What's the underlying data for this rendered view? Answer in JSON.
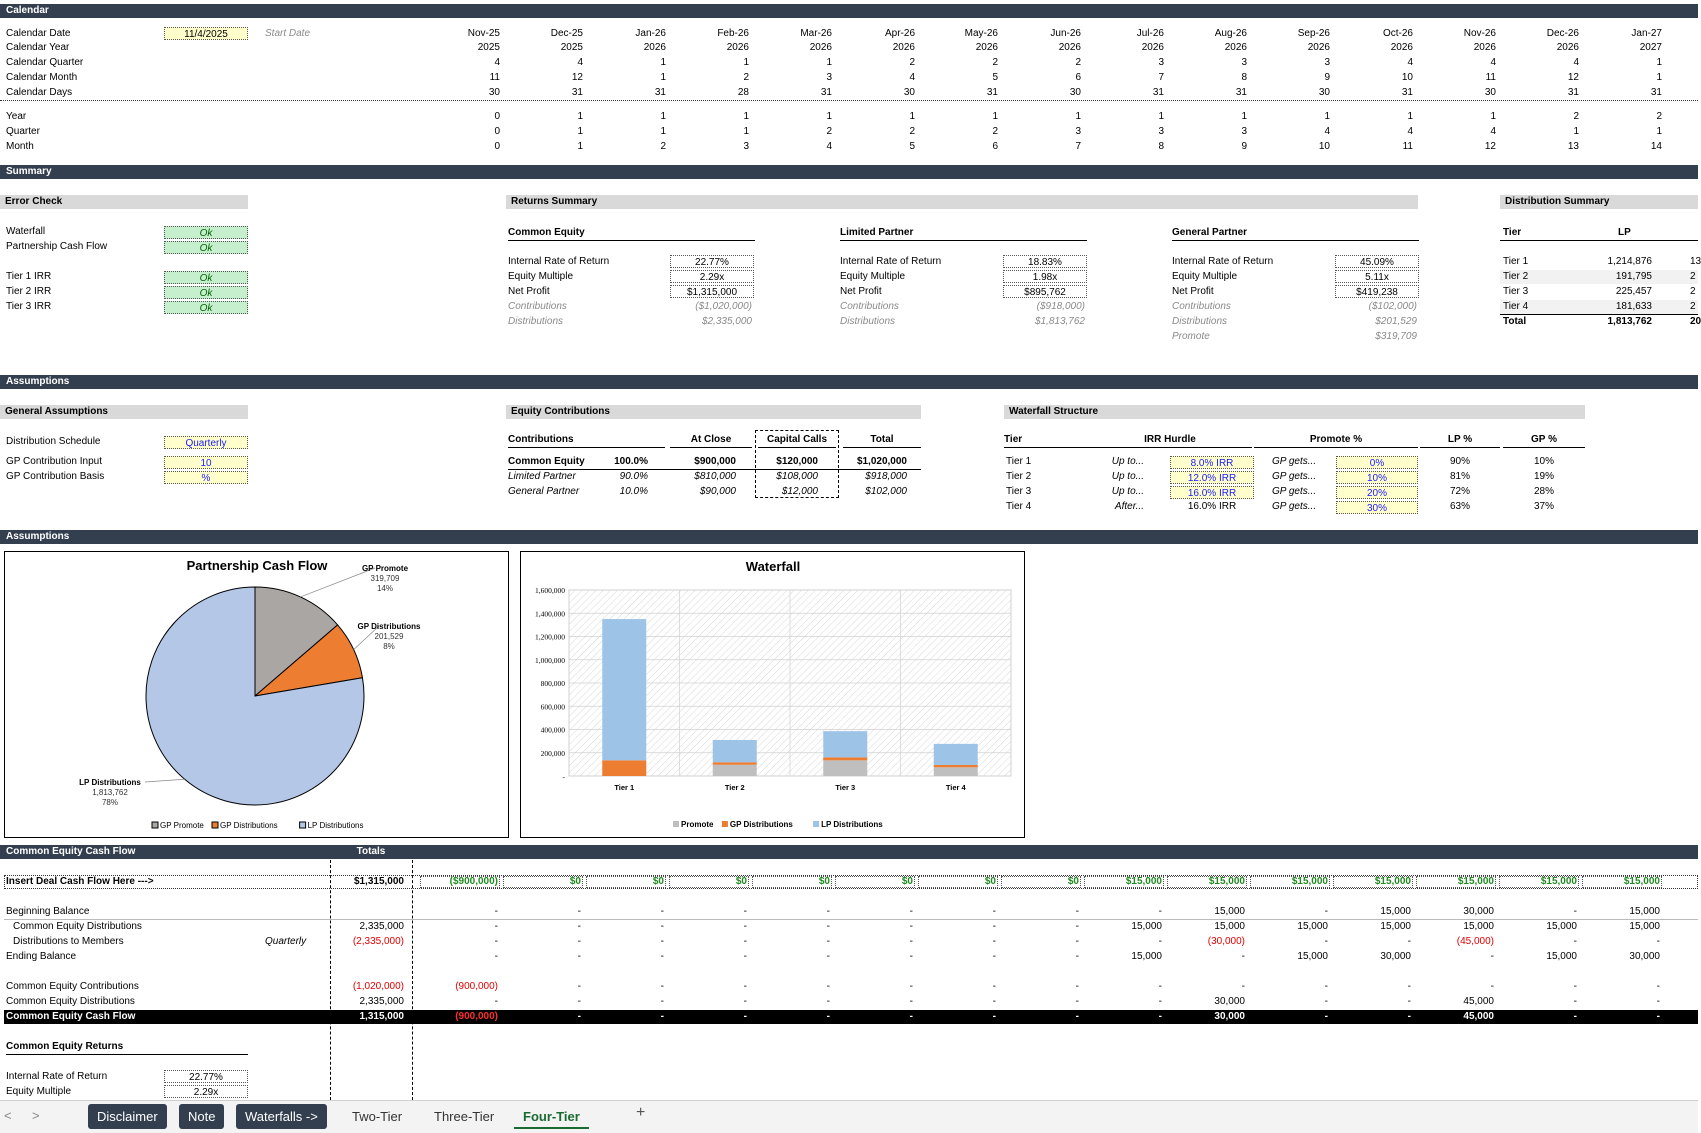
{
  "calendar": {
    "section": "Calendar",
    "labels": [
      "Calendar Date",
      "Calendar Year",
      "Calendar Quarter",
      "Calendar Month",
      "Calendar Days"
    ],
    "date_value": "11/4/2025",
    "start_label": "Start Date",
    "months": [
      "Nov-25",
      "Dec-25",
      "Jan-26",
      "Feb-26",
      "Mar-26",
      "Apr-26",
      "May-26",
      "Jun-26",
      "Jul-26",
      "Aug-26",
      "Sep-26",
      "Oct-26",
      "Nov-26",
      "Dec-26",
      "Jan-27"
    ],
    "years": [
      "2025",
      "2025",
      "2026",
      "2026",
      "2026",
      "2026",
      "2026",
      "2026",
      "2026",
      "2026",
      "2026",
      "2026",
      "2026",
      "2026",
      "2027"
    ],
    "quarters": [
      "4",
      "4",
      "1",
      "1",
      "1",
      "2",
      "2",
      "2",
      "3",
      "3",
      "3",
      "4",
      "4",
      "4",
      "1"
    ],
    "cal_months": [
      "11",
      "12",
      "1",
      "2",
      "3",
      "4",
      "5",
      "6",
      "7",
      "8",
      "9",
      "10",
      "11",
      "12",
      "1"
    ],
    "days": [
      "30",
      "31",
      "31",
      "28",
      "31",
      "30",
      "31",
      "30",
      "31",
      "31",
      "30",
      "31",
      "30",
      "31",
      "31"
    ],
    "period_labels": [
      "Year",
      "Quarter",
      "Month"
    ],
    "year_idx": [
      "0",
      "1",
      "1",
      "1",
      "1",
      "1",
      "1",
      "1",
      "1",
      "1",
      "1",
      "1",
      "1",
      "2",
      "2"
    ],
    "quarter_idx": [
      "0",
      "1",
      "1",
      "1",
      "2",
      "2",
      "2",
      "3",
      "3",
      "3",
      "4",
      "4",
      "4",
      "1",
      "1"
    ],
    "month_idx": [
      "0",
      "1",
      "2",
      "3",
      "4",
      "5",
      "6",
      "7",
      "8",
      "9",
      "10",
      "11",
      "12",
      "13",
      "14"
    ]
  },
  "summary": {
    "section": "Summary",
    "error_check": {
      "title": "Error Check",
      "rows": [
        {
          "label": "Waterfall",
          "value": "Ok"
        },
        {
          "label": "Partnership Cash Flow",
          "value": "Ok"
        },
        {
          "label": "Tier 1 IRR",
          "value": "Ok"
        },
        {
          "label": "Tier 2 IRR",
          "value": "Ok"
        },
        {
          "label": "Tier 3 IRR",
          "value": "Ok"
        }
      ]
    },
    "returns": {
      "title": "Returns Summary",
      "row_labels": [
        "Internal Rate of Return",
        "Equity Multiple",
        "Net Profit",
        "Contributions",
        "Distributions",
        "Promote"
      ],
      "common": {
        "title": "Common Equity",
        "irr": "22.77%",
        "multiple": "2.29x",
        "profit": "$1,315,000",
        "contrib": "($1,020,000)",
        "dist": "$2,335,000"
      },
      "lp": {
        "title": "Limited Partner",
        "irr": "18.83%",
        "multiple": "1.98x",
        "profit": "$895,762",
        "contrib": "($918,000)",
        "dist": "$1,813,762"
      },
      "gp": {
        "title": "General Partner",
        "irr": "45.09%",
        "multiple": "5.11x",
        "profit": "$419,238",
        "contrib": "($102,000)",
        "dist": "$201,529",
        "promote": "$319,709"
      }
    },
    "distribution": {
      "title": "Distribution Summary",
      "col_tier": "Tier",
      "col_lp": "LP",
      "rows": [
        {
          "tier": "Tier 1",
          "lp": "1,214,876",
          "next": "13"
        },
        {
          "tier": "Tier 2",
          "lp": "191,795",
          "next": "2"
        },
        {
          "tier": "Tier 3",
          "lp": "225,457",
          "next": "2"
        },
        {
          "tier": "Tier 4",
          "lp": "181,633",
          "next": "2"
        }
      ],
      "total_label": "Total",
      "total_lp": "1,813,762",
      "total_next": "20"
    }
  },
  "assumptions": {
    "section": "Assumptions",
    "general": {
      "title": "General Assumptions",
      "rows": [
        {
          "label": "Distribution Schedule",
          "value": "Quarterly"
        },
        {
          "label": "GP Contribution Input",
          "value": "10"
        },
        {
          "label": "GP Contribution Basis",
          "value": "%"
        }
      ]
    },
    "equity": {
      "title": "Equity Contributions",
      "headers": [
        "Contributions",
        "At Close",
        "Capital Calls",
        "Total"
      ],
      "rows": [
        {
          "label": "Common Equity",
          "pct": "100.0%",
          "close": "$900,000",
          "calls": "$120,000",
          "total": "$1,020,000"
        },
        {
          "label": "Limited Partner",
          "pct": "90.0%",
          "close": "$810,000",
          "calls": "$108,000",
          "total": "$918,000"
        },
        {
          "label": "General Partner",
          "pct": "10.0%",
          "close": "$90,000",
          "calls": "$12,000",
          "total": "$102,000"
        }
      ]
    },
    "waterfall": {
      "title": "Waterfall Structure",
      "headers": [
        "Tier",
        "IRR Hurdle",
        "Promote %",
        "LP %",
        "GP %"
      ],
      "rows": [
        {
          "tier": "Tier 1",
          "pre": "Up to...",
          "hurdle": "8.0% IRR",
          "gp": "GP gets...",
          "promote": "0%",
          "lp_pct": "90%",
          "gp_pct": "10%"
        },
        {
          "tier": "Tier 2",
          "pre": "Up to...",
          "hurdle": "12.0% IRR",
          "gp": "GP gets...",
          "promote": "10%",
          "lp_pct": "81%",
          "gp_pct": "19%"
        },
        {
          "tier": "Tier 3",
          "pre": "Up to...",
          "hurdle": "16.0% IRR",
          "gp": "GP gets...",
          "promote": "20%",
          "lp_pct": "72%",
          "gp_pct": "28%"
        },
        {
          "tier": "Tier 4",
          "pre": "After...",
          "hurdle": "16.0% IRR",
          "gp": "GP gets...",
          "promote": "30%",
          "lp_pct": "63%",
          "gp_pct": "37%"
        }
      ]
    }
  },
  "charts_section": "Assumptions",
  "chart_data": [
    {
      "type": "pie",
      "title": "Partnership Cash Flow",
      "slices": [
        {
          "name": "GP Promote",
          "value": 319709,
          "label": "319,709",
          "pct": "14%",
          "color": "#a9a6a3"
        },
        {
          "name": "GP Distributions",
          "value": 201529,
          "label": "201,529",
          "pct": "8%",
          "color": "#ed7d31"
        },
        {
          "name": "LP Distributions",
          "value": 1813762,
          "label": "1,813,762",
          "pct": "78%",
          "color": "#b4c7e7"
        }
      ],
      "legend": "bottom"
    },
    {
      "type": "bar",
      "stacked": true,
      "title": "Waterfall",
      "categories": [
        "Tier 1",
        "Tier 2",
        "Tier 3",
        "Tier 4"
      ],
      "series": [
        {
          "name": "Promote",
          "values": [
            0,
            97000,
            135000,
            75000
          ],
          "color": "#bfbfbf"
        },
        {
          "name": "GP Distributions",
          "values": [
            135000,
            21000,
            25000,
            20000
          ],
          "color": "#ed7d31"
        },
        {
          "name": "LP Distributions",
          "values": [
            1214876,
            191795,
            225457,
            181633
          ],
          "color": "#9dc3e6"
        }
      ],
      "ylim": [
        0,
        1600000
      ],
      "yticks": [
        "-",
        "200,000",
        "400,000",
        "600,000",
        "800,000",
        "1,000,000",
        "1,200,000",
        "1,400,000",
        "1,600,000"
      ],
      "legend": "bottom"
    }
  ],
  "cashflow": {
    "section": "Common Equity Cash Flow",
    "totals_label": "Totals",
    "insert_label": "Insert Deal Cash Flow Here --->",
    "insert_total": "$1,315,000",
    "insert_values": [
      "($900,000)",
      "$0",
      "$0",
      "$0",
      "$0",
      "$0",
      "$0",
      "$0",
      "$15,000",
      "$15,000",
      "$15,000",
      "$15,000",
      "$15,000",
      "$15,000",
      "$15,000"
    ],
    "rows": [
      {
        "label": "Beginning Balance",
        "note": "",
        "total": "",
        "values": [
          "-",
          "-",
          "-",
          "-",
          "-",
          "-",
          "-",
          "-",
          "-",
          "15,000",
          "-",
          "15,000",
          "30,000",
          "-",
          "15,000"
        ]
      },
      {
        "label": "Common Equity Distributions",
        "note": "",
        "total": "2,335,000",
        "values": [
          "-",
          "-",
          "-",
          "-",
          "-",
          "-",
          "-",
          "-",
          "15,000",
          "15,000",
          "15,000",
          "15,000",
          "15,000",
          "15,000",
          "15,000"
        ]
      },
      {
        "label": "Distributions to Members",
        "note": "Quarterly",
        "total": "(2,335,000)",
        "values": [
          "-",
          "-",
          "-",
          "-",
          "-",
          "-",
          "-",
          "-",
          "-",
          "(30,000)",
          "-",
          "-",
          "(45,000)",
          "-",
          "-"
        ]
      },
      {
        "label": "Ending Balance",
        "note": "",
        "total": "",
        "values": [
          "-",
          "-",
          "-",
          "-",
          "-",
          "-",
          "-",
          "-",
          "15,000",
          "-",
          "15,000",
          "30,000",
          "-",
          "15,000",
          "30,000"
        ]
      }
    ],
    "contrib_rows": [
      {
        "label": "Common Equity Contributions",
        "total": "(1,020,000)",
        "values": [
          "(900,000)",
          "-",
          "-",
          "-",
          "-",
          "-",
          "-",
          "-",
          "-",
          "-",
          "-",
          "-",
          "-",
          "-",
          "-"
        ]
      },
      {
        "label": "Common Equity Distributions",
        "total": "2,335,000",
        "values": [
          "-",
          "-",
          "-",
          "-",
          "-",
          "-",
          "-",
          "-",
          "-",
          "30,000",
          "-",
          "-",
          "45,000",
          "-",
          "-"
        ]
      }
    ],
    "cf_row": {
      "label": "Common Equity Cash Flow",
      "total": "1,315,000",
      "values": [
        "(900,000)",
        "-",
        "-",
        "-",
        "-",
        "-",
        "-",
        "-",
        "-",
        "30,000",
        "-",
        "-",
        "45,000",
        "-",
        "-"
      ]
    },
    "returns_title": "Common Equity Returns",
    "returns": [
      {
        "label": "Internal Rate of Return",
        "value": "22.77%"
      },
      {
        "label": "Equity Multiple",
        "value": "2.29x"
      }
    ]
  },
  "tabs": {
    "nav_prev": "<",
    "nav_next": ">",
    "items": [
      "Disclaimer",
      "Note",
      "Waterfalls ->",
      "Two-Tier",
      "Three-Tier",
      "Four-Tier"
    ],
    "add": "+"
  }
}
